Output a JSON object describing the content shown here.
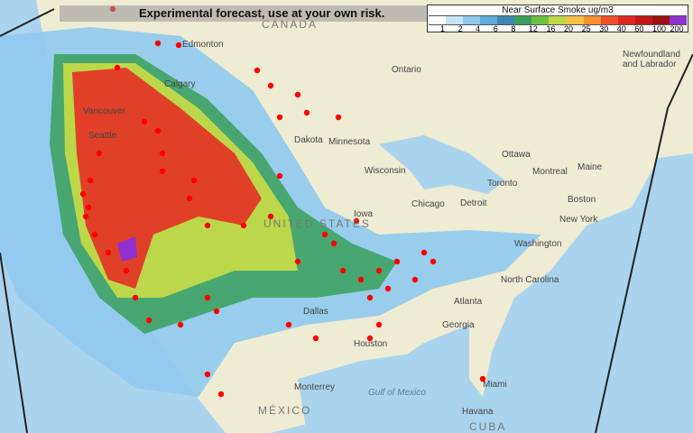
{
  "banner": {
    "text": "Experimental forecast, use at your own risk."
  },
  "legend": {
    "title": "Near Surface Smoke ug/m3",
    "ticks": [
      "1",
      "2",
      "4",
      "6",
      "8",
      "12",
      "16",
      "20",
      "25",
      "30",
      "40",
      "60",
      "100",
      "200"
    ],
    "colors": [
      "#ffffff",
      "#c6e4f6",
      "#8fcaee",
      "#5eaad8",
      "#3e86b4",
      "#3aa05c",
      "#6cc040",
      "#bcd84a",
      "#f8c048",
      "#f89030",
      "#f05028",
      "#e02820",
      "#c01818",
      "#9c1010",
      "#9030d0"
    ]
  },
  "map": {
    "colors": {
      "land": "#efecd4",
      "ocean": "#aad4ee",
      "smoke_light": "#8fcaee",
      "smoke_mid": "#3aa05c",
      "smoke_heavy": "#e04028",
      "fire": "#ff0000"
    },
    "labels": [
      {
        "text": "CANADA",
        "kind": "country"
      },
      {
        "text": "Edmonton",
        "kind": "city"
      },
      {
        "text": "Calgary",
        "kind": "city"
      },
      {
        "text": "Vancouver",
        "kind": "city"
      },
      {
        "text": "Seattle",
        "kind": "city"
      },
      {
        "text": "Ontario",
        "kind": "region"
      },
      {
        "text": "Newfoundland and Labrador",
        "kind": "region"
      },
      {
        "text": "Dakota",
        "kind": "region"
      },
      {
        "text": "Minnesota",
        "kind": "region"
      },
      {
        "text": "Wisconsin",
        "kind": "region"
      },
      {
        "text": "Iowa",
        "kind": "region"
      },
      {
        "text": "Chicago",
        "kind": "city"
      },
      {
        "text": "Detroit",
        "kind": "city"
      },
      {
        "text": "Toronto",
        "kind": "city"
      },
      {
        "text": "Ottawa",
        "kind": "city"
      },
      {
        "text": "Montreal",
        "kind": "city"
      },
      {
        "text": "Maine",
        "kind": "region"
      },
      {
        "text": "Boston",
        "kind": "city"
      },
      {
        "text": "New York",
        "kind": "city"
      },
      {
        "text": "Washington",
        "kind": "city"
      },
      {
        "text": "North Carolina",
        "kind": "region"
      },
      {
        "text": "Atlanta",
        "kind": "city"
      },
      {
        "text": "Georgia",
        "kind": "region"
      },
      {
        "text": "Dallas",
        "kind": "city"
      },
      {
        "text": "Houston",
        "kind": "city"
      },
      {
        "text": "Miami",
        "kind": "city"
      },
      {
        "text": "Monterrey",
        "kind": "city"
      },
      {
        "text": "Gulf of Mexico",
        "kind": "water"
      },
      {
        "text": "MÉXICO",
        "kind": "country"
      },
      {
        "text": "Havana",
        "kind": "city"
      },
      {
        "text": "CUBA",
        "kind": "country"
      },
      {
        "text": "UNITED STATES",
        "kind": "country"
      }
    ]
  }
}
